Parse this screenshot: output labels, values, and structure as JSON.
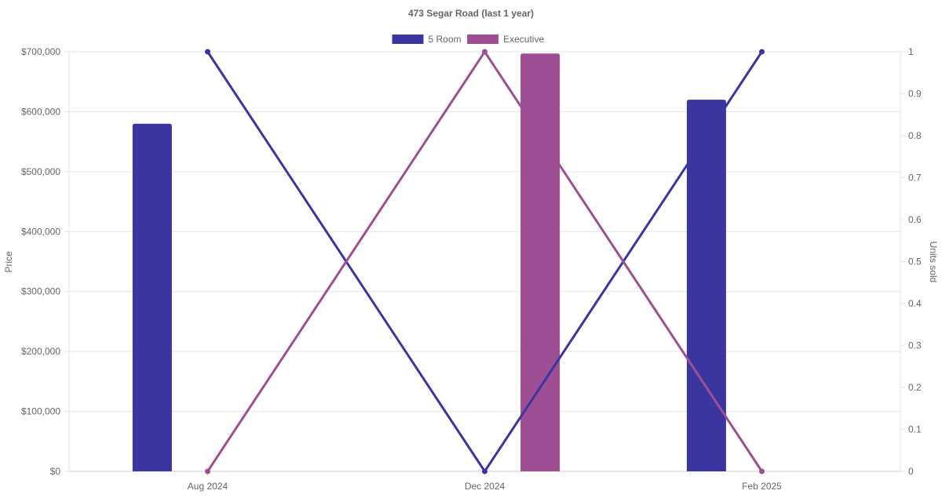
{
  "chart_data": {
    "type": "bar",
    "title": "473 Segar Road (last 1 year)",
    "categories": [
      "Aug 2024",
      "Dec 2024",
      "Feb 2025"
    ],
    "y_left": {
      "label": "Price",
      "range": [
        0,
        700000
      ],
      "ticks": [
        "$0",
        "$100,000",
        "$200,000",
        "$300,000",
        "$400,000",
        "$500,000",
        "$600,000",
        "$700,000"
      ]
    },
    "y_right": {
      "label": "Units sold",
      "range": [
        0,
        1
      ],
      "ticks": [
        "0",
        "0.1",
        "0.2",
        "0.3",
        "0.4",
        "0.5",
        "0.6",
        "0.7",
        "0.8",
        "0.9",
        "1"
      ]
    },
    "legend": {
      "placement": "top-center"
    },
    "grid": true,
    "series": [
      {
        "name": "5 Room",
        "color": "#3b35a0",
        "price": [
          580000,
          null,
          620000
        ],
        "units_sold": [
          1,
          0,
          1
        ]
      },
      {
        "name": "Executive",
        "color": "#9e4f93",
        "price": [
          null,
          697000,
          null
        ],
        "units_sold": [
          0,
          1,
          0
        ]
      }
    ]
  }
}
